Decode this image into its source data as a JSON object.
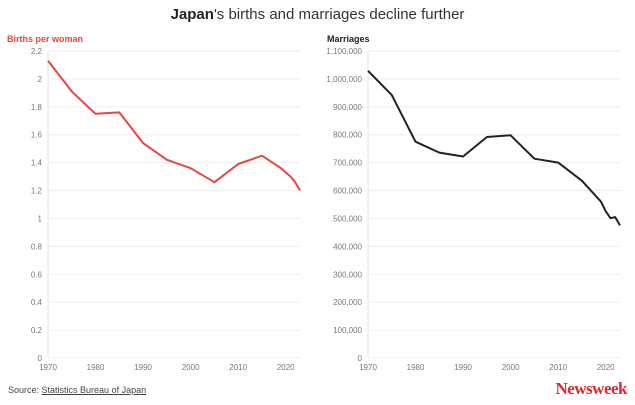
{
  "title": {
    "bold": "Japan",
    "rest": "'s births and marriages decline further"
  },
  "source": {
    "label": "Source: ",
    "link": "Statistics Bureau of Japan"
  },
  "logo": "Newsweek",
  "chart_data": [
    {
      "type": "line",
      "ylabel": "Births per woman",
      "color": "#e8463f",
      "xlim": [
        1970,
        2023
      ],
      "ylim": [
        0,
        2.2
      ],
      "xticks": [
        "1970",
        "1980",
        "1990",
        "2000",
        "2010",
        "2020"
      ],
      "yticks": [
        "0",
        "0.2",
        "0.4",
        "0.6",
        "0.8",
        "1",
        "1.2",
        "1.4",
        "1.6",
        "1.8",
        "2",
        "2.2"
      ],
      "grid": true,
      "x": [
        1970,
        1975,
        1980,
        1985,
        1990,
        1995,
        2000,
        2005,
        2010,
        2015,
        2019,
        2020,
        2021,
        2022,
        2023
      ],
      "y": [
        2.13,
        1.91,
        1.75,
        1.76,
        1.54,
        1.42,
        1.36,
        1.26,
        1.39,
        1.45,
        1.36,
        1.33,
        1.3,
        1.26,
        1.2
      ]
    },
    {
      "type": "line",
      "ylabel": "Marriages",
      "color": "#222222",
      "xlim": [
        1970,
        2023
      ],
      "ylim": [
        0,
        1100000
      ],
      "xticks": [
        "1970",
        "1980",
        "1990",
        "2000",
        "2010",
        "2020"
      ],
      "yticks": [
        "0",
        "100,000",
        "200,000",
        "300,000",
        "400,000",
        "500,000",
        "600,000",
        "700,000",
        "800,000",
        "900,000",
        "1,000,000",
        "1,100,000"
      ],
      "grid": true,
      "x": [
        1970,
        1975,
        1980,
        1985,
        1990,
        1995,
        2000,
        2005,
        2010,
        2015,
        2019,
        2020,
        2021,
        2022,
        2023
      ],
      "y": [
        1029000,
        942000,
        775000,
        736000,
        722000,
        792000,
        798000,
        714000,
        700000,
        635000,
        560000,
        526000,
        501000,
        505000,
        475000
      ]
    }
  ]
}
